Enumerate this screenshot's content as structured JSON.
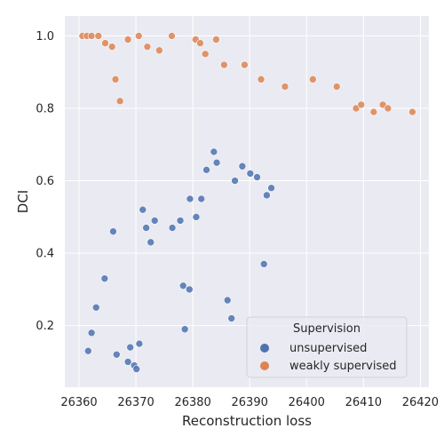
{
  "chart_data": {
    "type": "scatter",
    "xlabel": "Reconstruction loss",
    "ylabel": "DCI",
    "xlim": [
      26357.5,
      26421.5
    ],
    "ylim": [
      0.03,
      1.055
    ],
    "x_ticks": [
      "26360",
      "26370",
      "26380",
      "26390",
      "26400",
      "26410",
      "26420"
    ],
    "y_ticks": [
      "0.2",
      "0.4",
      "0.6",
      "0.8",
      "1.0"
    ],
    "grid": true,
    "legend": {
      "title": "Supervision",
      "placement": "bottom-right",
      "entries": [
        "unsupervised",
        "weakly supervised"
      ]
    },
    "colors": {
      "background": "#eaeaf2",
      "grid": "#ffffff",
      "unsupervised": "#4c72b0",
      "weakly supervised": "#dd8452"
    },
    "series": [
      {
        "name": "unsupervised",
        "points": [
          [
            26361.6,
            0.13
          ],
          [
            26362.2,
            0.18
          ],
          [
            26363.0,
            0.25
          ],
          [
            26364.5,
            0.33
          ],
          [
            26366.0,
            0.46
          ],
          [
            26368.6,
            0.1
          ],
          [
            26369.0,
            0.14
          ],
          [
            26369.7,
            0.09
          ],
          [
            26370.1,
            0.08
          ],
          [
            26370.6,
            0.15
          ],
          [
            26371.2,
            0.52
          ],
          [
            26371.8,
            0.47
          ],
          [
            26372.6,
            0.43
          ],
          [
            26373.3,
            0.49
          ],
          [
            26376.4,
            0.47
          ],
          [
            26377.8,
            0.49
          ],
          [
            26378.3,
            0.31
          ],
          [
            26379.5,
            0.55
          ],
          [
            26380.6,
            0.5
          ],
          [
            26381.5,
            0.55
          ],
          [
            26382.4,
            0.63
          ],
          [
            26383.7,
            0.68
          ],
          [
            26384.2,
            0.65
          ],
          [
            26386.1,
            0.27
          ],
          [
            26387.4,
            0.6
          ],
          [
            26388.7,
            0.64
          ],
          [
            26390.1,
            0.62
          ],
          [
            26391.3,
            0.61
          ],
          [
            26392.5,
            0.37
          ],
          [
            26393.0,
            0.56
          ],
          [
            26393.8,
            0.58
          ],
          [
            26386.8,
            0.22
          ],
          [
            26378.6,
            0.19
          ],
          [
            26379.4,
            0.3
          ],
          [
            26366.6,
            0.12
          ]
        ]
      },
      {
        "name": "weakly supervised",
        "points": [
          [
            26360.6,
            1.0
          ],
          [
            26361.4,
            1.0
          ],
          [
            26362.2,
            1.0
          ],
          [
            26363.4,
            1.0
          ],
          [
            26364.6,
            0.98
          ],
          [
            26365.8,
            0.97
          ],
          [
            26366.4,
            0.88
          ],
          [
            26367.2,
            0.82
          ],
          [
            26368.6,
            0.99
          ],
          [
            26370.5,
            1.0
          ],
          [
            26372.0,
            0.97
          ],
          [
            26374.1,
            0.96
          ],
          [
            26376.3,
            1.0
          ],
          [
            26380.5,
            0.99
          ],
          [
            26381.3,
            0.98
          ],
          [
            26382.2,
            0.95
          ],
          [
            26384.1,
            0.99
          ],
          [
            26385.5,
            0.92
          ],
          [
            26389.1,
            0.92
          ],
          [
            26392.0,
            0.88
          ],
          [
            26396.2,
            0.86
          ],
          [
            26401.1,
            0.88
          ],
          [
            26405.3,
            0.86
          ],
          [
            26408.7,
            0.8
          ],
          [
            26409.6,
            0.81
          ],
          [
            26411.8,
            0.79
          ],
          [
            26413.4,
            0.81
          ],
          [
            26414.3,
            0.8
          ],
          [
            26418.6,
            0.79
          ]
        ]
      }
    ]
  }
}
